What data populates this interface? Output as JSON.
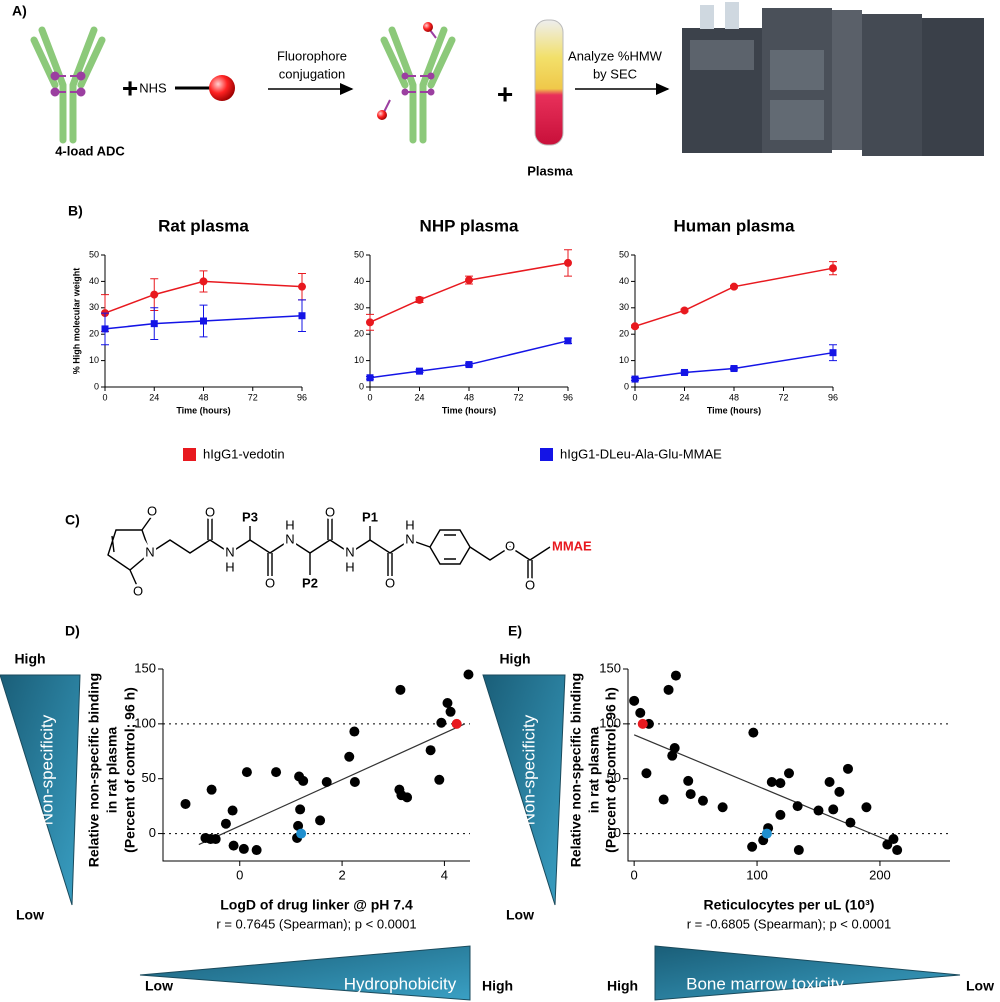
{
  "panel_labels": [
    "A)",
    "B)",
    "C)",
    "D)",
    "E)"
  ],
  "schematic": {
    "adc_label": "4-load ADC",
    "plus": "+",
    "nhs": "NHS",
    "step1": [
      "Fluorophore",
      "conjugation"
    ],
    "plasma": "Plasma",
    "step2": [
      "Analyze %HMW",
      "by SEC"
    ]
  },
  "structure": {
    "labels": [
      "N",
      "O",
      "O",
      "O",
      "N",
      "H",
      "P3",
      "O",
      "N",
      "H",
      "P2",
      "O",
      "N",
      "H",
      "P1",
      "O",
      "N",
      "H",
      "O",
      "O",
      "MMAE"
    ]
  },
  "chart_data": [
    {
      "type": "line",
      "title": "Rat plasma",
      "xlabel": "Time (hours)",
      "ylabel": "% High molecular weight",
      "x": [
        0,
        24,
        48,
        96
      ],
      "xlim": [
        0,
        96
      ],
      "xticks": [
        0,
        24,
        48,
        72,
        96
      ],
      "ylim": [
        0,
        50
      ],
      "yticks": [
        0,
        10,
        20,
        30,
        40,
        50
      ],
      "series": [
        {
          "name": "hIgG1-vedotin",
          "color": "#e8191f",
          "marker": "circle",
          "values": [
            28,
            35,
            40,
            38
          ],
          "errors": [
            7,
            6,
            4,
            5
          ]
        },
        {
          "name": "hIgG1-DLeu-Ala-Glu-MMAE",
          "color": "#1414e6",
          "marker": "square",
          "values": [
            22,
            24,
            25,
            27
          ],
          "errors": [
            6,
            6,
            6,
            6
          ]
        }
      ]
    },
    {
      "type": "line",
      "title": "NHP plasma",
      "xlabel": "Time (hours)",
      "x": [
        0,
        24,
        48,
        96
      ],
      "xlim": [
        0,
        96
      ],
      "xticks": [
        0,
        24,
        48,
        72,
        96
      ],
      "ylim": [
        0,
        50
      ],
      "yticks": [
        0,
        10,
        20,
        30,
        40,
        50
      ],
      "series": [
        {
          "color": "#e8191f",
          "marker": "circle",
          "values": [
            24.5,
            33,
            40.5,
            47
          ],
          "errors": [
            3,
            1,
            1.5,
            5
          ]
        },
        {
          "color": "#1414e6",
          "marker": "square",
          "values": [
            3.5,
            6,
            8.5,
            17.5
          ],
          "errors": [
            0.5,
            0.5,
            0.5,
            1
          ]
        }
      ]
    },
    {
      "type": "line",
      "title": "Human plasma",
      "xlabel": "Time (hours)",
      "x": [
        0,
        24,
        48,
        96
      ],
      "xlim": [
        0,
        96
      ],
      "xticks": [
        0,
        24,
        48,
        72,
        96
      ],
      "ylim": [
        0,
        50
      ],
      "yticks": [
        0,
        10,
        20,
        30,
        40,
        50
      ],
      "series": [
        {
          "color": "#e8191f",
          "marker": "circle",
          "values": [
            23,
            29,
            38,
            45
          ],
          "errors": [
            0.5,
            0.5,
            0.5,
            2.5
          ]
        },
        {
          "color": "#1414e6",
          "marker": "square",
          "values": [
            3,
            5.5,
            7,
            13
          ],
          "errors": [
            0.5,
            0.5,
            0.5,
            3
          ]
        }
      ]
    },
    {
      "type": "scatter",
      "xlabel": "LogD of drug linker @ pH 7.4",
      "ylabel": [
        "Relative non-specific binding",
        "in rat plasma",
        "(Percent of control; 96 h)"
      ],
      "stats": "r = 0.7645 (Spearman); p < 0.0001",
      "xlim": [
        -1.5,
        4.5
      ],
      "xticks": [
        0,
        2,
        4
      ],
      "ylim": [
        -25,
        150
      ],
      "yticks": [
        0,
        50,
        100,
        150
      ],
      "reference_lines": [
        0,
        100
      ],
      "fit": {
        "x": [
          -0.8,
          4.4
        ],
        "y": [
          -10,
          100
        ]
      },
      "series": [
        {
          "color": "#000000",
          "x": [
            -1.06,
            -0.67,
            -0.57,
            -0.47,
            -0.27,
            -0.14,
            -0.12,
            0.08,
            0.14,
            0.33,
            -0.55,
            0.71,
            1.12,
            1.16,
            1.24,
            1.18,
            1.14,
            1.57,
            1.7,
            2.14,
            2.24,
            2.25,
            3.14,
            3.12,
            3.16,
            3.27,
            3.73,
            3.9,
            3.94,
            4.06,
            4.12,
            4.47
          ],
          "y": [
            27,
            -4,
            -5,
            -5,
            9,
            21,
            -11,
            -14,
            56,
            -15,
            40,
            56,
            -4,
            52,
            48,
            22,
            7,
            12,
            47,
            70,
            93,
            47,
            131,
            40,
            35,
            33,
            76,
            49,
            101,
            119,
            111,
            145
          ]
        },
        {
          "color": "#e8191f",
          "x": [
            4.24
          ],
          "y": [
            100
          ]
        },
        {
          "color": "#1f8fcf",
          "x": [
            1.2
          ],
          "y": [
            0
          ]
        }
      ]
    },
    {
      "type": "scatter",
      "xlabel": "Reticulocytes per uL (10³)",
      "ylabel": [
        "Relative non-specific binding",
        "in rat plasma",
        "(Percent of control; 96 h)"
      ],
      "stats": "r = -0.6805 (Spearman); p < 0.0001",
      "xlim": [
        -5,
        257
      ],
      "xticks": [
        0,
        100,
        200
      ],
      "ylim": [
        -25,
        150
      ],
      "yticks": [
        0,
        50,
        100,
        150
      ],
      "reference_lines": [
        0,
        100
      ],
      "fit": {
        "x": [
          0,
          208
        ],
        "y": [
          90,
          -7
        ]
      },
      "series": [
        {
          "color": "#000000",
          "x": [
            0,
            5,
            12,
            10,
            24,
            28,
            31,
            34,
            33,
            44,
            46,
            56,
            72,
            97,
            96,
            105,
            109,
            112,
            119,
            119,
            126,
            133,
            134,
            150,
            159,
            162,
            167,
            174,
            176,
            189,
            206,
            211,
            214
          ],
          "y": [
            121,
            110,
            100,
            55,
            31,
            131,
            71,
            144,
            78,
            48,
            36,
            30,
            24,
            92,
            -12,
            -6,
            5,
            47,
            46,
            17,
            55,
            25,
            -15,
            21,
            47,
            22,
            38,
            59,
            10,
            24,
            -10,
            -5,
            -15
          ]
        },
        {
          "color": "#e8191f",
          "x": [
            7
          ],
          "y": [
            100
          ]
        },
        {
          "color": "#1f8fcf",
          "x": [
            108
          ],
          "y": [
            0
          ]
        }
      ]
    }
  ],
  "annotations": {
    "d": {
      "top": "High",
      "axis": "Non-specificity",
      "bottom": "Low",
      "x_low": "Low",
      "x_axis": "Hydrophobicity",
      "x_high": "High"
    },
    "e": {
      "top": "High",
      "axis": "Non-specificity",
      "bottom": "Low",
      "x_low": "High",
      "x_axis": "Bone marrow toxicity",
      "x_high": "Low"
    }
  }
}
